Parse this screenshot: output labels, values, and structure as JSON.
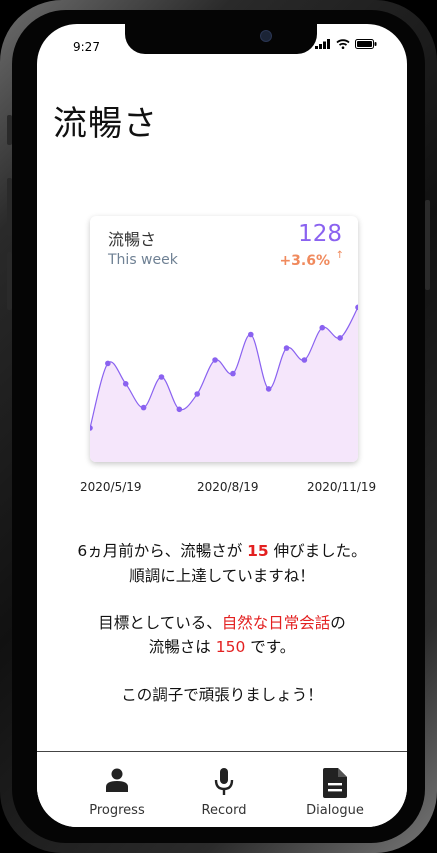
{
  "status": {
    "time": "9:27"
  },
  "page": {
    "title": "流暢さ"
  },
  "card": {
    "title": "流暢さ",
    "value": "128",
    "period": "This week",
    "change": "+3.6%",
    "accent_color": "#8a62f0",
    "change_color": "#f08a5d",
    "fill_color": "#f5e6fb"
  },
  "chart_data": {
    "type": "area",
    "x_tick_labels": [
      "2020/5/19",
      "2020/8/19",
      "2020/11/19"
    ],
    "values": [
      20,
      58,
      46,
      32,
      50,
      31,
      40,
      60,
      52,
      75,
      43,
      67,
      60,
      79,
      73,
      91
    ],
    "ylim": [
      0,
      100
    ],
    "grid": false
  },
  "message": {
    "line1_pre": "6ヵ月前から、流暢さが ",
    "line1_num": "15",
    "line1_post": " 伸びました。",
    "line2": "順調に上達していますね！",
    "line3_pre": "目標としている、",
    "line3_goal": "自然な日常会話",
    "line3_post": "の",
    "line4_pre": "流暢さは ",
    "line4_num": "150",
    "line4_post": " です。",
    "line5": "この調子で頑張りましょう！"
  },
  "tabs": [
    {
      "label": "Progress",
      "icon": "person-icon"
    },
    {
      "label": "Record",
      "icon": "microphone-icon"
    },
    {
      "label": "Dialogue",
      "icon": "document-icon"
    }
  ]
}
